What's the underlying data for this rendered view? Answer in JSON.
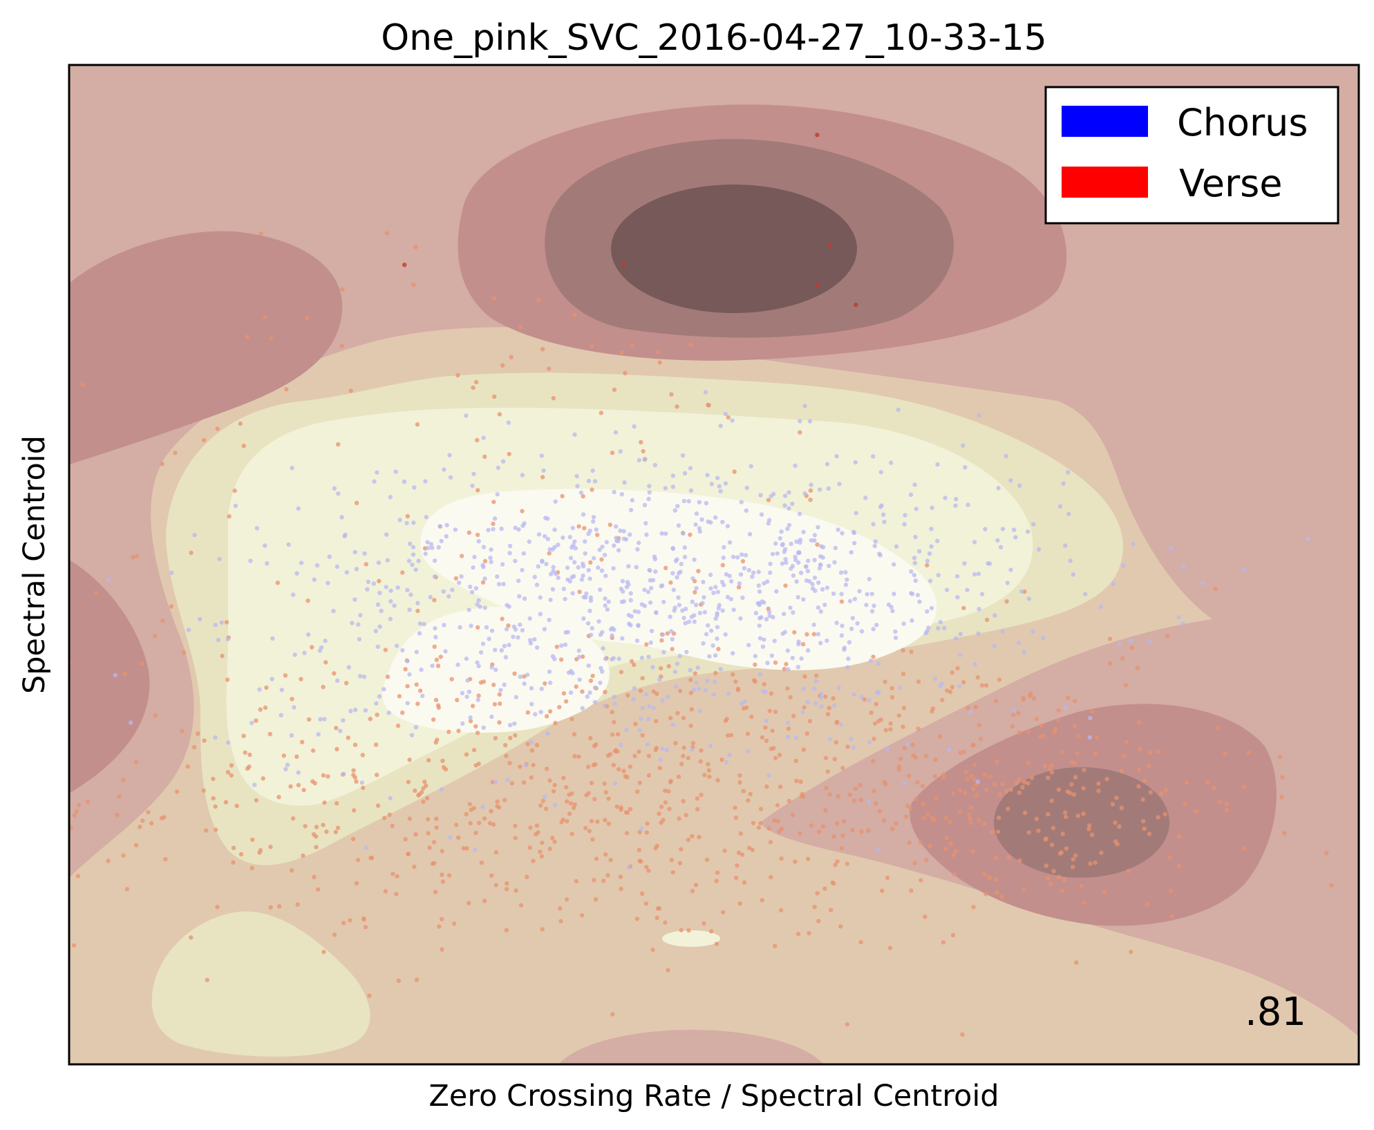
{
  "chart_data": {
    "type": "scatter",
    "title": "One_pink_SVC_2016-04-27_10-33-15",
    "xlabel": "Zero Crossing Rate / Spectral Centroid",
    "ylabel": "Spectral Centroid",
    "xlim": [
      0,
      1
    ],
    "ylim": [
      0,
      1
    ],
    "ticks_visible": false,
    "grid": false,
    "legend": {
      "position": "top-right",
      "entries": [
        {
          "label": "Chorus",
          "color": "#0000ff"
        },
        {
          "label": "Verse",
          "color": "#ff0000"
        }
      ]
    },
    "score": ".81",
    "background": {
      "kind": "decision-function-contour",
      "colormap_levels": [
        "#77595a",
        "#a27b79",
        "#c28f8d",
        "#d4ada4",
        "#e1c9af",
        "#e8e4c2",
        "#f2f2d8",
        "#fbfaf1"
      ]
    },
    "series": [
      {
        "name": "Chorus",
        "color": "#b8b8f0",
        "clusters": [
          {
            "center": [
              0.48,
              0.5
            ],
            "spread": [
              0.15,
              0.06
            ],
            "count": 700
          },
          {
            "center": [
              0.42,
              0.4
            ],
            "spread": [
              0.16,
              0.07
            ],
            "count": 300
          }
        ]
      },
      {
        "name": "Verse",
        "color": "#e8926e",
        "clusters": [
          {
            "center": [
              0.42,
              0.27
            ],
            "spread": [
              0.2,
              0.08
            ],
            "count": 700
          },
          {
            "center": [
              0.74,
              0.27
            ],
            "spread": [
              0.09,
              0.06
            ],
            "count": 200
          },
          {
            "center": [
              0.35,
              0.5
            ],
            "spread": [
              0.17,
              0.16
            ],
            "count": 200
          }
        ],
        "outliers": [
          [
            0.58,
            0.93
          ],
          [
            0.59,
            0.82
          ],
          [
            0.43,
            0.8
          ],
          [
            0.58,
            0.78
          ],
          [
            0.61,
            0.76
          ],
          [
            0.26,
            0.8
          ]
        ]
      }
    ]
  }
}
